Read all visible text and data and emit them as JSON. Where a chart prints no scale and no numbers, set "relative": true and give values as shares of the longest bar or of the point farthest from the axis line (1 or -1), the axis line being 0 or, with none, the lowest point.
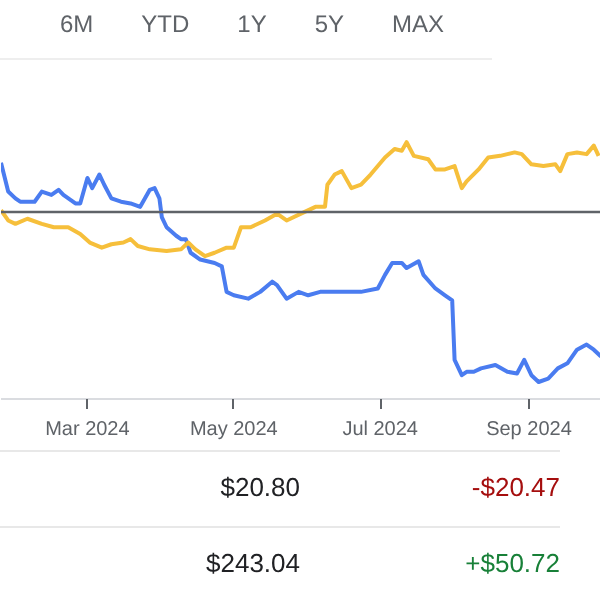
{
  "chart_data": {
    "type": "line",
    "relative": true,
    "xlim": [
      "2024-01-25",
      "2024-10-01"
    ],
    "xticks": [
      {
        "value": "2024-03-01",
        "label": "Mar 2024"
      },
      {
        "value": "2024-05-01",
        "label": "May 2024"
      },
      {
        "value": "2024-07-01",
        "label": "Jul 2024"
      },
      {
        "value": "2024-09-01",
        "label": "Sep 2024"
      }
    ],
    "ref_lines": [
      {
        "axis": "y",
        "value": 0,
        "color": "#5f6368"
      }
    ],
    "annotations": [
      "6M",
      "YTD",
      "1Y",
      "5Y",
      "MAX",
      "$20.80",
      "-$20.47",
      "$243.04",
      "+$50.72"
    ],
    "series": [
      {
        "color": "#4a7cf0",
        "x": [
          "2024-01-25",
          "2024-01-28",
          "2024-01-31",
          "2024-02-02",
          "2024-02-08",
          "2024-02-11",
          "2024-02-15",
          "2024-02-18",
          "2024-02-20",
          "2024-02-25",
          "2024-02-27",
          "2024-03-01",
          "2024-03-03",
          "2024-03-06",
          "2024-03-08",
          "2024-03-11",
          "2024-03-15",
          "2024-03-19",
          "2024-03-23",
          "2024-03-27",
          "2024-03-29",
          "2024-03-31",
          "2024-04-01",
          "2024-04-03",
          "2024-04-07",
          "2024-04-09",
          "2024-04-11",
          "2024-04-13",
          "2024-04-17",
          "2024-04-23",
          "2024-04-26",
          "2024-04-28",
          "2024-05-01",
          "2024-05-07",
          "2024-05-12",
          "2024-05-17",
          "2024-05-19",
          "2024-05-23",
          "2024-05-28",
          "2024-06-01",
          "2024-06-06",
          "2024-06-12",
          "2024-06-17",
          "2024-06-23",
          "2024-06-30",
          "2024-07-03",
          "2024-07-06",
          "2024-07-10",
          "2024-07-12",
          "2024-07-17",
          "2024-07-19",
          "2024-07-24",
          "2024-07-28",
          "2024-07-31",
          "2024-08-01",
          "2024-08-04",
          "2024-08-06",
          "2024-08-09",
          "2024-08-12",
          "2024-08-18",
          "2024-08-23",
          "2024-08-27",
          "2024-08-30",
          "2024-09-02",
          "2024-09-05",
          "2024-09-09",
          "2024-09-13",
          "2024-09-17",
          "2024-09-21",
          "2024-09-25",
          "2024-09-28",
          "2024-10-01"
        ],
        "values": [
          0.29,
          0.12,
          0.08,
          0.06,
          0.06,
          0.12,
          0.1,
          0.13,
          0.1,
          0.05,
          0.05,
          0.2,
          0.14,
          0.22,
          0.16,
          0.08,
          0.06,
          0.05,
          0.03,
          0.13,
          0.14,
          0.08,
          -0.03,
          -0.09,
          -0.14,
          -0.16,
          -0.16,
          -0.24,
          -0.28,
          -0.3,
          -0.32,
          -0.47,
          -0.49,
          -0.51,
          -0.47,
          -0.41,
          -0.43,
          -0.51,
          -0.47,
          -0.49,
          -0.47,
          -0.47,
          -0.47,
          -0.47,
          -0.45,
          -0.37,
          -0.3,
          -0.3,
          -0.33,
          -0.29,
          -0.37,
          -0.45,
          -0.49,
          -0.52,
          -0.87,
          -0.96,
          -0.94,
          -0.94,
          -0.92,
          -0.9,
          -0.94,
          -0.95,
          -0.87,
          -0.96,
          -1,
          -0.98,
          -0.92,
          -0.89,
          -0.81,
          -0.78,
          -0.81,
          -0.85
        ]
      },
      {
        "color": "#f6bf3b",
        "x": [
          "2024-01-25",
          "2024-01-28",
          "2024-01-31",
          "2024-02-05",
          "2024-02-11",
          "2024-02-16",
          "2024-02-22",
          "2024-02-27",
          "2024-03-02",
          "2024-03-07",
          "2024-03-11",
          "2024-03-16",
          "2024-03-19",
          "2024-03-22",
          "2024-03-27",
          "2024-04-03",
          "2024-04-09",
          "2024-04-12",
          "2024-04-15",
          "2024-04-19",
          "2024-04-23",
          "2024-04-28",
          "2024-05-01",
          "2024-05-04",
          "2024-05-08",
          "2024-05-14",
          "2024-05-19",
          "2024-05-23",
          "2024-05-29",
          "2024-06-04",
          "2024-06-08",
          "2024-06-09",
          "2024-06-12",
          "2024-06-15",
          "2024-06-19",
          "2024-06-23",
          "2024-06-27",
          "2024-06-30",
          "2024-07-03",
          "2024-07-07",
          "2024-07-10",
          "2024-07-12",
          "2024-07-15",
          "2024-07-21",
          "2024-07-24",
          "2024-07-28",
          "2024-08-01",
          "2024-08-04",
          "2024-08-06",
          "2024-08-11",
          "2024-08-15",
          "2024-08-20",
          "2024-08-26",
          "2024-08-29",
          "2024-09-02",
          "2024-09-07",
          "2024-09-12",
          "2024-09-14",
          "2024-09-17",
          "2024-09-21",
          "2024-09-25",
          "2024-09-28",
          "2024-09-30"
        ],
        "values": [
          0.01,
          -0.05,
          -0.07,
          -0.04,
          -0.07,
          -0.09,
          -0.09,
          -0.13,
          -0.18,
          -0.21,
          -0.19,
          -0.18,
          -0.16,
          -0.2,
          -0.22,
          -0.23,
          -0.22,
          -0.18,
          -0.22,
          -0.26,
          -0.24,
          -0.21,
          -0.21,
          -0.09,
          -0.09,
          -0.05,
          -0.01,
          -0.05,
          -0.01,
          0.03,
          0.03,
          0.16,
          0.22,
          0.24,
          0.14,
          0.16,
          0.22,
          0.27,
          0.32,
          0.37,
          0.36,
          0.41,
          0.33,
          0.31,
          0.25,
          0.25,
          0.27,
          0.14,
          0.18,
          0.25,
          0.32,
          0.33,
          0.35,
          0.34,
          0.28,
          0.27,
          0.28,
          0.24,
          0.34,
          0.35,
          0.34,
          0.39,
          0.33
        ]
      }
    ]
  }
}
